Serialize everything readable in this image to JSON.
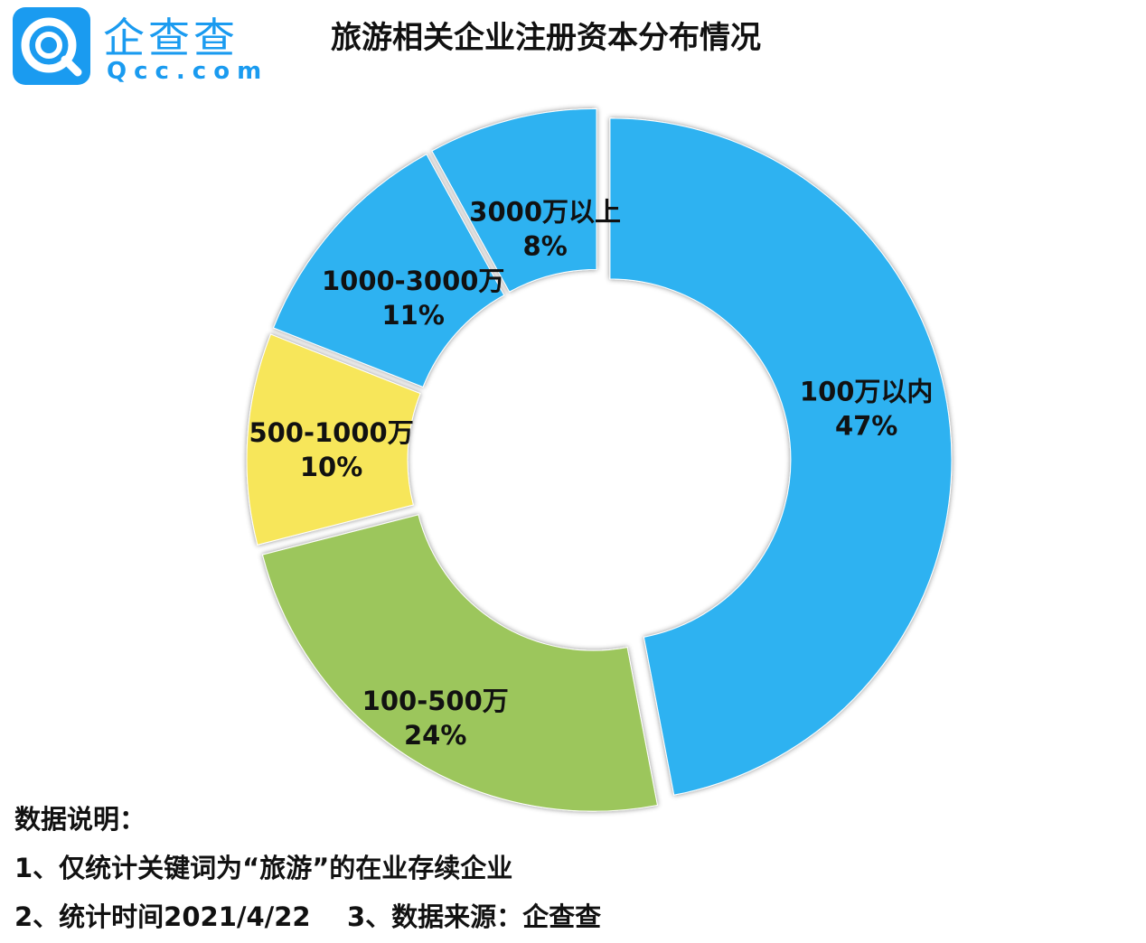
{
  "logo": {
    "name_cn": "企查查",
    "name_en": "Qcc.com"
  },
  "title": "旅游相关企业注册资本分布情况",
  "chart_data": {
    "type": "pie",
    "subtype": "donut",
    "title": "旅游相关企业注册资本分布情况",
    "categories": [
      "100万以内",
      "100-500万",
      "500-1000万",
      "1000-3000万",
      "3000万以上"
    ],
    "values": [
      47,
      24,
      10,
      11,
      8
    ],
    "value_labels": [
      "47%",
      "24%",
      "10%",
      "11%",
      "8%"
    ],
    "unit": "%",
    "colors": [
      "#2db2f1",
      "#9cc65c",
      "#f7e65a",
      "#2db2f1",
      "#2db2f1"
    ],
    "exploded": true,
    "legend": "none",
    "labels_position": "inside"
  },
  "notes": {
    "heading": "数据说明：",
    "line1": "1、仅统计关键词为“旅游”的在业存续企业",
    "line2": "2、统计时间2021/4/22    3、数据来源：企查查"
  }
}
